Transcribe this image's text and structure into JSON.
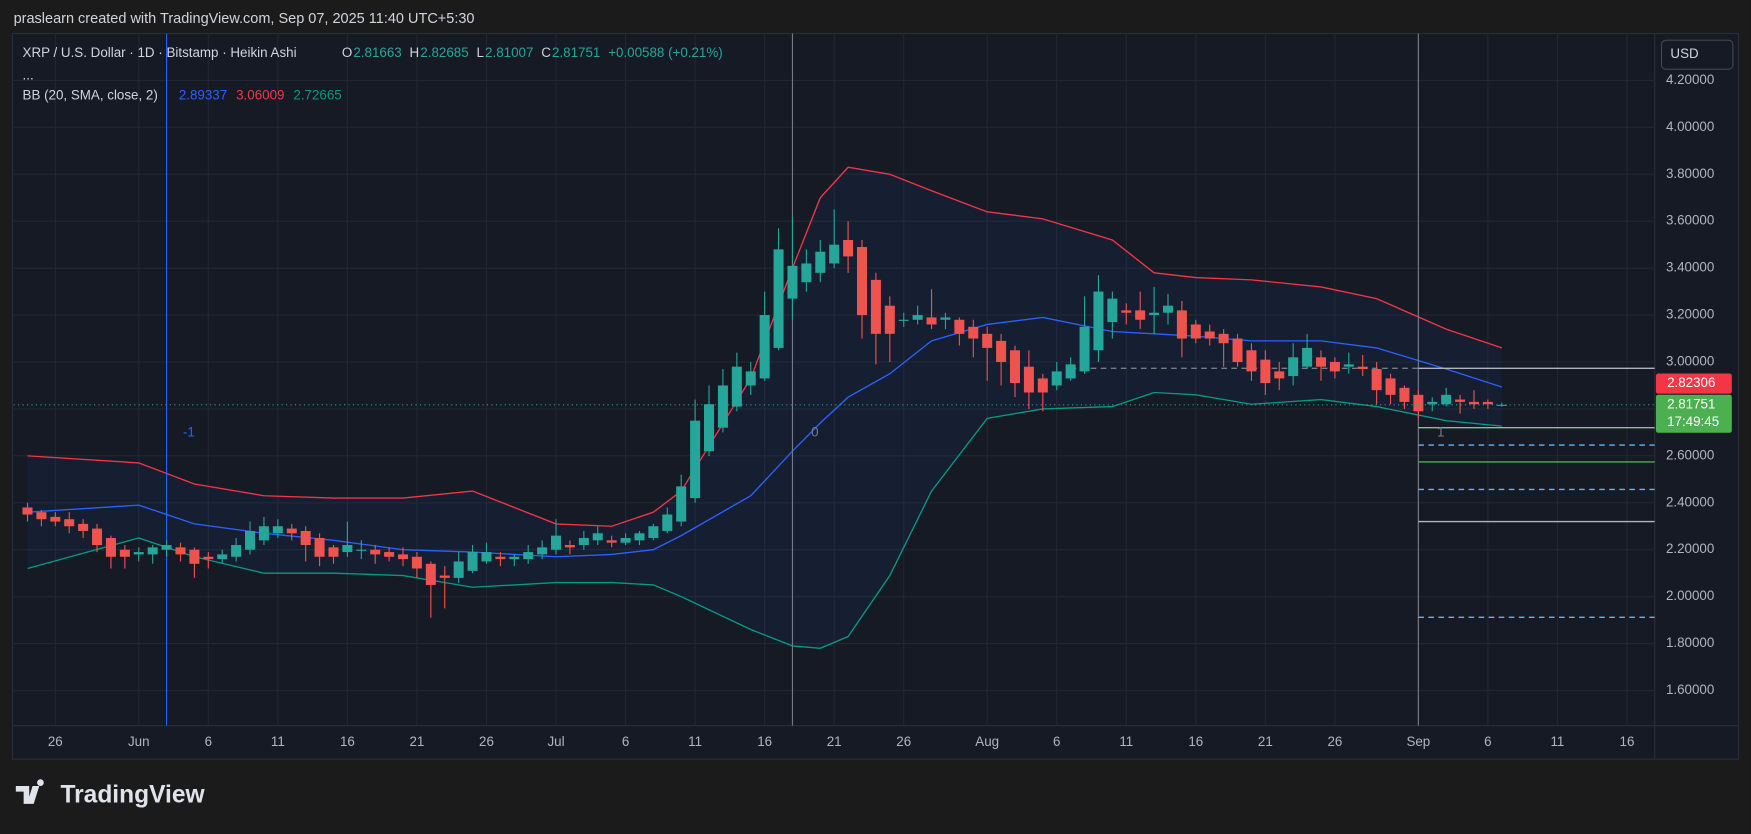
{
  "chart_data": {
    "type": "candlestick",
    "credit": "praslearn created with TradingView.com, Sep 07, 2025 11:40 UTC+5:30",
    "symbol": "XRP / U.S. Dollar · 1D · Bitstamp · Heikin Ashi",
    "ohlc_labels": [
      "O",
      "H",
      "L",
      "C"
    ],
    "change": "+0.00588 (+0.21%)",
    "more": "...",
    "currency": "USD",
    "brand": "TradingView",
    "up_color": "#26a69a",
    "down_color": "#ef5350",
    "grid": true,
    "xlim": [
      "05-23",
      "09-18"
    ],
    "ylim": [
      1.45,
      4.4
    ],
    "yticks": [
      {
        "value": 1.6,
        "label": "1.60000"
      },
      {
        "value": 1.8,
        "label": "1.80000"
      },
      {
        "value": 2.0,
        "label": "2.00000"
      },
      {
        "value": 2.2,
        "label": "2.20000"
      },
      {
        "value": 2.4,
        "label": "2.40000"
      },
      {
        "value": 2.6,
        "label": "2.60000"
      },
      {
        "value": 2.8,
        "label": "2.80000"
      },
      {
        "value": 3.0,
        "label": "3.00000"
      },
      {
        "value": 3.2,
        "label": "3.20000"
      },
      {
        "value": 3.4,
        "label": "3.40000"
      },
      {
        "value": 3.6,
        "label": "3.60000"
      },
      {
        "value": 3.8,
        "label": "3.80000"
      },
      {
        "value": 4.0,
        "label": "4.00000"
      },
      {
        "value": 4.2,
        "label": "4.20000"
      }
    ],
    "xticks": [
      {
        "value": "05-26",
        "label": "26"
      },
      {
        "value": "06-01",
        "label": "Jun"
      },
      {
        "value": "06-06",
        "label": "6"
      },
      {
        "value": "06-11",
        "label": "11"
      },
      {
        "value": "06-16",
        "label": "16"
      },
      {
        "value": "06-21",
        "label": "21"
      },
      {
        "value": "06-26",
        "label": "26"
      },
      {
        "value": "07-01",
        "label": "Jul"
      },
      {
        "value": "07-06",
        "label": "6"
      },
      {
        "value": "07-11",
        "label": "11"
      },
      {
        "value": "07-16",
        "label": "16"
      },
      {
        "value": "07-21",
        "label": "21"
      },
      {
        "value": "07-26",
        "label": "26"
      },
      {
        "value": "08-01",
        "label": "Aug"
      },
      {
        "value": "08-06",
        "label": "6"
      },
      {
        "value": "08-11",
        "label": "11"
      },
      {
        "value": "08-16",
        "label": "16"
      },
      {
        "value": "08-21",
        "label": "21"
      },
      {
        "value": "08-26",
        "label": "26"
      },
      {
        "value": "09-01",
        "label": "Sep"
      },
      {
        "value": "09-06",
        "label": "6"
      },
      {
        "value": "09-11",
        "label": "11"
      },
      {
        "value": "09-16",
        "label": "16"
      }
    ],
    "dates": [
      "05-24",
      "05-25",
      "05-26",
      "05-27",
      "05-28",
      "05-29",
      "05-30",
      "05-31",
      "06-01",
      "06-02",
      "06-03",
      "06-04",
      "06-05",
      "06-06",
      "06-07",
      "06-08",
      "06-09",
      "06-10",
      "06-11",
      "06-12",
      "06-13",
      "06-14",
      "06-15",
      "06-16",
      "06-17",
      "06-18",
      "06-19",
      "06-20",
      "06-21",
      "06-22",
      "06-23",
      "06-24",
      "06-25",
      "06-26",
      "06-27",
      "06-28",
      "06-29",
      "06-30",
      "07-01",
      "07-02",
      "07-03",
      "07-04",
      "07-05",
      "07-06",
      "07-07",
      "07-08",
      "07-09",
      "07-10",
      "07-11",
      "07-12",
      "07-13",
      "07-14",
      "07-15",
      "07-16",
      "07-17",
      "07-18",
      "07-19",
      "07-20",
      "07-21",
      "07-22",
      "07-23",
      "07-24",
      "07-25",
      "07-26",
      "07-27",
      "07-28",
      "07-29",
      "07-30",
      "07-31",
      "08-01",
      "08-02",
      "08-03",
      "08-04",
      "08-05",
      "08-06",
      "08-07",
      "08-08",
      "08-09",
      "08-10",
      "08-11",
      "08-12",
      "08-13",
      "08-14",
      "08-15",
      "08-16",
      "08-17",
      "08-18",
      "08-19",
      "08-20",
      "08-21",
      "08-22",
      "08-23",
      "08-24",
      "08-25",
      "08-26",
      "08-27",
      "08-28",
      "08-29",
      "08-30",
      "08-31",
      "09-01",
      "09-02",
      "09-03",
      "09-04",
      "09-05",
      "09-06",
      "09-07"
    ],
    "candles": [
      [
        2.38,
        2.4,
        2.32,
        2.35
      ],
      [
        2.36,
        2.37,
        2.3,
        2.33
      ],
      [
        2.34,
        2.36,
        2.3,
        2.32
      ],
      [
        2.33,
        2.36,
        2.27,
        2.3
      ],
      [
        2.31,
        2.33,
        2.25,
        2.28
      ],
      [
        2.29,
        2.31,
        2.19,
        2.22
      ],
      [
        2.25,
        2.26,
        2.12,
        2.17
      ],
      [
        2.2,
        2.22,
        2.12,
        2.17
      ],
      [
        2.18,
        2.21,
        2.15,
        2.19
      ],
      [
        2.18,
        2.22,
        2.14,
        2.21
      ],
      [
        2.2,
        2.24,
        2.17,
        2.22
      ],
      [
        2.21,
        2.23,
        2.15,
        2.18
      ],
      [
        2.2,
        2.21,
        2.08,
        2.14
      ],
      [
        2.17,
        2.19,
        2.12,
        2.16
      ],
      [
        2.16,
        2.2,
        2.14,
        2.18
      ],
      [
        2.17,
        2.25,
        2.15,
        2.22
      ],
      [
        2.2,
        2.32,
        2.18,
        2.28
      ],
      [
        2.24,
        2.34,
        2.22,
        2.3
      ],
      [
        2.27,
        2.33,
        2.25,
        2.3
      ],
      [
        2.29,
        2.31,
        2.24,
        2.27
      ],
      [
        2.28,
        2.3,
        2.15,
        2.22
      ],
      [
        2.25,
        2.27,
        2.13,
        2.17
      ],
      [
        2.21,
        2.22,
        2.14,
        2.17
      ],
      [
        2.19,
        2.32,
        2.17,
        2.22
      ],
      [
        2.2,
        2.24,
        2.16,
        2.2
      ],
      [
        2.2,
        2.22,
        2.14,
        2.18
      ],
      [
        2.19,
        2.21,
        2.15,
        2.17
      ],
      [
        2.18,
        2.21,
        2.13,
        2.16
      ],
      [
        2.17,
        2.19,
        2.08,
        2.12
      ],
      [
        2.14,
        2.15,
        1.91,
        2.05
      ],
      [
        2.09,
        2.13,
        1.95,
        2.08
      ],
      [
        2.08,
        2.19,
        2.06,
        2.15
      ],
      [
        2.11,
        2.22,
        2.1,
        2.19
      ],
      [
        2.15,
        2.23,
        2.14,
        2.19
      ],
      [
        2.17,
        2.19,
        2.13,
        2.16
      ],
      [
        2.16,
        2.18,
        2.13,
        2.17
      ],
      [
        2.16,
        2.22,
        2.14,
        2.19
      ],
      [
        2.18,
        2.24,
        2.16,
        2.21
      ],
      [
        2.2,
        2.33,
        2.18,
        2.26
      ],
      [
        2.22,
        2.24,
        2.18,
        2.21
      ],
      [
        2.22,
        2.28,
        2.2,
        2.25
      ],
      [
        2.24,
        2.3,
        2.22,
        2.27
      ],
      [
        2.24,
        2.26,
        2.21,
        2.23
      ],
      [
        2.23,
        2.27,
        2.22,
        2.25
      ],
      [
        2.24,
        2.28,
        2.22,
        2.27
      ],
      [
        2.25,
        2.31,
        2.24,
        2.3
      ],
      [
        2.28,
        2.38,
        2.27,
        2.35
      ],
      [
        2.32,
        2.52,
        2.3,
        2.47
      ],
      [
        2.42,
        2.84,
        2.4,
        2.75
      ],
      [
        2.62,
        2.9,
        2.6,
        2.82
      ],
      [
        2.72,
        2.97,
        2.7,
        2.9
      ],
      [
        2.81,
        3.04,
        2.79,
        2.98
      ],
      [
        2.9,
        3.0,
        2.86,
        2.96
      ],
      [
        2.93,
        3.3,
        2.92,
        3.2
      ],
      [
        3.06,
        3.57,
        3.05,
        3.48
      ],
      [
        3.27,
        3.62,
        3.18,
        3.41
      ],
      [
        3.34,
        3.48,
        3.3,
        3.42
      ],
      [
        3.38,
        3.52,
        3.34,
        3.47
      ],
      [
        3.42,
        3.65,
        3.4,
        3.5
      ],
      [
        3.52,
        3.6,
        3.38,
        3.45
      ],
      [
        3.49,
        3.52,
        3.1,
        3.2
      ],
      [
        3.35,
        3.38,
        2.99,
        3.12
      ],
      [
        3.24,
        3.28,
        3.0,
        3.12
      ],
      [
        3.18,
        3.21,
        3.15,
        3.18
      ],
      [
        3.18,
        3.24,
        3.16,
        3.2
      ],
      [
        3.19,
        3.31,
        3.14,
        3.16
      ],
      [
        3.18,
        3.21,
        3.14,
        3.19
      ],
      [
        3.18,
        3.19,
        3.07,
        3.12
      ],
      [
        3.15,
        3.18,
        3.02,
        3.1
      ],
      [
        3.12,
        3.15,
        2.92,
        3.06
      ],
      [
        3.09,
        3.12,
        2.9,
        3.0
      ],
      [
        3.05,
        3.07,
        2.85,
        2.91
      ],
      [
        2.98,
        3.05,
        2.8,
        2.87
      ],
      [
        2.93,
        2.95,
        2.79,
        2.87
      ],
      [
        2.9,
        3.0,
        2.88,
        2.96
      ],
      [
        2.93,
        3.02,
        2.92,
        2.99
      ],
      [
        2.96,
        3.28,
        2.95,
        3.15
      ],
      [
        3.05,
        3.37,
        3.0,
        3.3
      ],
      [
        3.17,
        3.3,
        3.1,
        3.27
      ],
      [
        3.22,
        3.25,
        3.16,
        3.21
      ],
      [
        3.22,
        3.3,
        3.14,
        3.18
      ],
      [
        3.2,
        3.32,
        3.12,
        3.21
      ],
      [
        3.21,
        3.29,
        3.16,
        3.24
      ],
      [
        3.22,
        3.26,
        3.02,
        3.1
      ],
      [
        3.16,
        3.18,
        3.08,
        3.1
      ],
      [
        3.13,
        3.16,
        3.07,
        3.1
      ],
      [
        3.12,
        3.14,
        2.98,
        3.08
      ],
      [
        3.1,
        3.12,
        2.98,
        3.0
      ],
      [
        3.05,
        3.08,
        2.92,
        2.96
      ],
      [
        3.01,
        3.05,
        2.86,
        2.91
      ],
      [
        2.96,
        3.0,
        2.88,
        2.93
      ],
      [
        2.94,
        3.08,
        2.9,
        3.02
      ],
      [
        2.98,
        3.12,
        2.97,
        3.06
      ],
      [
        3.02,
        3.05,
        2.92,
        2.98
      ],
      [
        3.0,
        3.02,
        2.93,
        2.96
      ],
      [
        2.98,
        3.04,
        2.95,
        2.99
      ],
      [
        2.98,
        3.03,
        2.94,
        2.97
      ],
      [
        2.97,
        3.0,
        2.82,
        2.88
      ],
      [
        2.93,
        2.95,
        2.82,
        2.86
      ],
      [
        2.89,
        2.9,
        2.8,
        2.83
      ],
      [
        2.86,
        2.88,
        2.76,
        2.79
      ],
      [
        2.82,
        2.85,
        2.79,
        2.83
      ],
      [
        2.82,
        2.89,
        2.81,
        2.86
      ],
      [
        2.84,
        2.86,
        2.78,
        2.83
      ],
      [
        2.83,
        2.88,
        2.8,
        2.82
      ],
      [
        2.83,
        2.84,
        2.8,
        2.82
      ],
      [
        2.81663,
        2.82685,
        2.81007,
        2.81751
      ]
    ],
    "bollinger": {
      "label": "BB (20, SMA, close, 2)",
      "fill": "#2962ff",
      "dates": [
        "05-24",
        "06-01",
        "06-05",
        "06-10",
        "06-15",
        "06-20",
        "06-25",
        "07-01",
        "07-05",
        "07-08",
        "07-10",
        "07-15",
        "07-18",
        "07-20",
        "07-22",
        "07-25",
        "07-28",
        "08-01",
        "08-05",
        "08-10",
        "08-13",
        "08-16",
        "08-20",
        "08-25",
        "08-29",
        "09-03",
        "09-07"
      ],
      "basis": {
        "color": "#2962ff",
        "values": [
          2.36,
          2.39,
          2.31,
          2.27,
          2.24,
          2.2,
          2.19,
          2.17,
          2.18,
          2.2,
          2.26,
          2.43,
          2.62,
          2.74,
          2.85,
          2.95,
          3.09,
          3.16,
          3.19,
          3.13,
          3.12,
          3.11,
          3.09,
          3.09,
          3.06,
          2.97,
          2.89337
        ]
      },
      "upper": {
        "color": "#f23645",
        "values": [
          2.6,
          2.57,
          2.48,
          2.43,
          2.42,
          2.42,
          2.45,
          2.31,
          2.3,
          2.36,
          2.45,
          2.93,
          3.4,
          3.7,
          3.83,
          3.8,
          3.73,
          3.64,
          3.61,
          3.52,
          3.38,
          3.36,
          3.35,
          3.32,
          3.27,
          3.14,
          3.06009
        ]
      },
      "lower": {
        "color": "#089981",
        "values": [
          2.12,
          2.25,
          2.17,
          2.1,
          2.1,
          2.09,
          2.04,
          2.06,
          2.06,
          2.05,
          2.0,
          1.86,
          1.79,
          1.78,
          1.83,
          2.09,
          2.45,
          2.76,
          2.8,
          2.81,
          2.87,
          2.86,
          2.82,
          2.84,
          2.81,
          2.75,
          2.72665
        ]
      }
    },
    "markers": [
      {
        "date": "06-03",
        "label": "-1",
        "color": "#2962ff"
      },
      {
        "date": "07-18",
        "label": "0",
        "color": "#787b86"
      },
      {
        "date": "09-01",
        "label": "1",
        "color": "#787b86"
      }
    ],
    "levels": [
      {
        "value": 2.973,
        "from": "08-07",
        "to": "09-01",
        "color": "#787b86",
        "dash": true
      },
      {
        "value": 2.973,
        "from": "09-01",
        "color": "#b2b5be",
        "dash": false
      },
      {
        "value": 2.72,
        "from": "09-01",
        "color": "#81c784",
        "dash": false
      },
      {
        "value": 2.646,
        "from": "09-01",
        "color": "#64b5f6",
        "dash": true
      },
      {
        "value": 2.574,
        "from": "09-01",
        "color": "#4caf50",
        "dash": false
      },
      {
        "value": 2.457,
        "from": "09-01",
        "color": "#64b5f6",
        "dash": true
      },
      {
        "value": 2.32,
        "from": "09-01",
        "color": "#b2b5be",
        "dash": false
      },
      {
        "value": 1.912,
        "from": "09-01",
        "color": "#64b5f6",
        "dash": true
      }
    ],
    "prev_close": {
      "value": 2.82306,
      "color": "#f23645"
    },
    "countdown": "17:49:45"
  }
}
